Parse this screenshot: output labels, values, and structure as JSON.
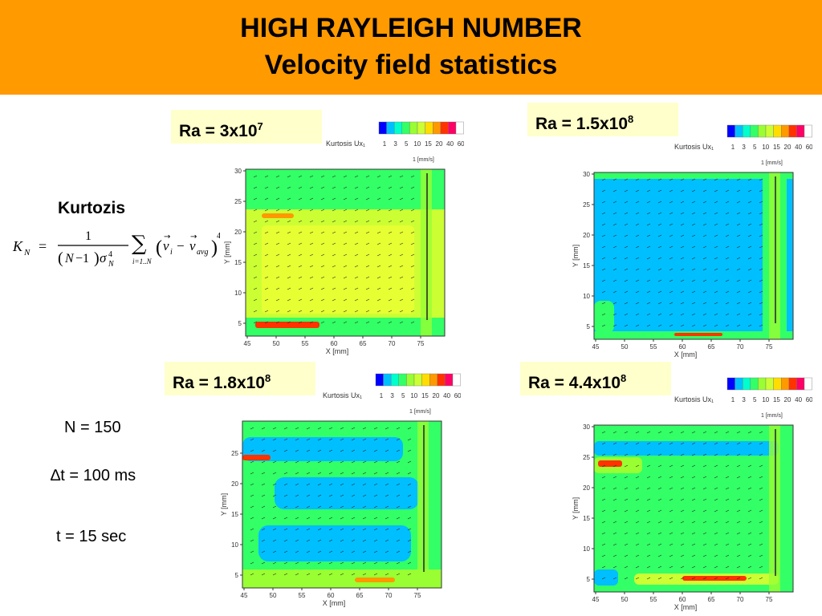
{
  "header": {
    "title": "HIGH RAYLEIGH NUMBER",
    "subtitle": "Velocity field statistics"
  },
  "formula": {
    "title": "Kurtozis",
    "lhs": "K",
    "lhs_sub": "N",
    "numerator": "1",
    "denominator_a": "N",
    "denominator_b": "−1",
    "sigma": "σ",
    "sigma_sub": "N",
    "sigma_sup": "4",
    "sum_sub": "i=1..N",
    "v": "v",
    "v_sub_i": "i",
    "v_sub_avg": "avg",
    "power": "4"
  },
  "params": {
    "n": "N = 150",
    "dt": "∆t = 100 ms",
    "t": "t = 15 sec"
  },
  "colors": {
    "header_bg": "#ff9a00",
    "label_bg": "#ffffcc",
    "scale": [
      "#0000ff",
      "#00bfff",
      "#00ffcc",
      "#33ff66",
      "#99ff33",
      "#ccff33",
      "#ffdd00",
      "#ff9900",
      "#ff3300",
      "#ff0066",
      "#ffffff"
    ]
  },
  "panels": [
    {
      "ra_base": "Ra = 3x10",
      "ra_exp": "7",
      "legend_title": "Kurtosis Ux₁",
      "legend_ticks": [
        "1",
        "3",
        "5",
        "10",
        "15",
        "20",
        "40",
        "60"
      ],
      "scale_label": "1 [mm/s]",
      "xlabel": "X [mm]",
      "ylabel": "Y [mm]",
      "x_ticks": [
        "45",
        "50",
        "55",
        "60",
        "65",
        "70",
        "75"
      ],
      "y_ticks": [
        "5",
        "10",
        "15",
        "20",
        "25",
        "30"
      ],
      "dominant": "yellow-green"
    },
    {
      "ra_base": "Ra = 1.5x10",
      "ra_exp": "8",
      "legend_title": "Kurtosis Ux₁",
      "legend_ticks": [
        "1",
        "3",
        "5",
        "10",
        "15",
        "20",
        "40",
        "60"
      ],
      "scale_label": "1 [mm/s]",
      "xlabel": "X [mm]",
      "ylabel": "Y [mm]",
      "x_ticks": [
        "45",
        "50",
        "55",
        "60",
        "65",
        "70",
        "75"
      ],
      "y_ticks": [
        "5",
        "10",
        "15",
        "20",
        "25",
        "30"
      ],
      "dominant": "cyan"
    },
    {
      "ra_base": "Ra = 1.8x10",
      "ra_exp": "8",
      "legend_title": "Kurtosis Ux₁",
      "legend_ticks": [
        "1",
        "3",
        "5",
        "10",
        "15",
        "20",
        "40",
        "60"
      ],
      "scale_label": "1 [mm/s]",
      "xlabel": "X [mm]",
      "ylabel": "Y [mm]",
      "x_ticks": [
        "45",
        "50",
        "55",
        "60",
        "65",
        "70",
        "75"
      ],
      "y_ticks": [
        "5",
        "10",
        "15",
        "20",
        "25"
      ],
      "dominant": "mixed"
    },
    {
      "ra_base": "Ra = 4.4x10",
      "ra_exp": "8",
      "legend_title": "Kurtosis Ux₁",
      "legend_ticks": [
        "1",
        "3",
        "5",
        "10",
        "15",
        "20",
        "40",
        "60"
      ],
      "scale_label": "1 [mm/s]",
      "xlabel": "X [mm]",
      "ylabel": "Y [mm]",
      "x_ticks": [
        "45",
        "50",
        "55",
        "60",
        "65",
        "70",
        "75"
      ],
      "y_ticks": [
        "5",
        "10",
        "15",
        "20",
        "25",
        "30"
      ],
      "dominant": "green"
    }
  ]
}
